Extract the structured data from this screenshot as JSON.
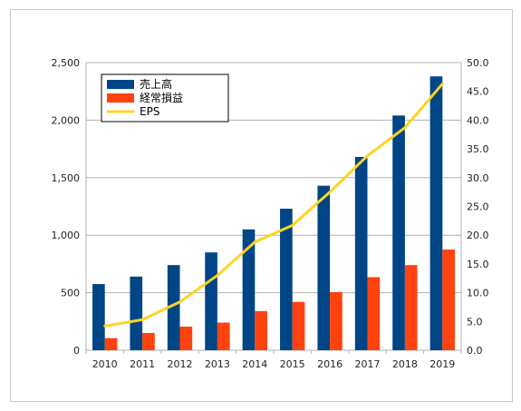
{
  "chart_data": {
    "type": "bar",
    "categories": [
      "2010",
      "2011",
      "2012",
      "2013",
      "2014",
      "2015",
      "2016",
      "2017",
      "2018",
      "2019"
    ],
    "series": [
      {
        "name": "売上高",
        "type": "bar",
        "axis": "left",
        "color": "#004586",
        "values": [
          575,
          640,
          740,
          850,
          1050,
          1230,
          1430,
          1680,
          2040,
          2380
        ]
      },
      {
        "name": "経常損益",
        "type": "bar",
        "axis": "left",
        "color": "#ff420e",
        "values": [
          105,
          150,
          205,
          240,
          340,
          420,
          505,
          635,
          740,
          875
        ]
      },
      {
        "name": "EPS",
        "type": "line",
        "axis": "right",
        "color": "#ffd320",
        "values": [
          4.2,
          5.3,
          8.4,
          13.0,
          18.8,
          21.7,
          27.5,
          33.8,
          38.7,
          46.3
        ]
      }
    ],
    "yleft": {
      "min": 0,
      "max": 2500,
      "ticks": [
        "0",
        "500",
        "1,000",
        "1,500",
        "2,000",
        "2,500"
      ]
    },
    "yright": {
      "min": 0,
      "max": 50,
      "ticks": [
        "0.0",
        "5.0",
        "10.0",
        "15.0",
        "20.0",
        "25.0",
        "30.0",
        "35.0",
        "40.0",
        "45.0",
        "50.0"
      ]
    },
    "grid": true,
    "legend": "top-left"
  }
}
